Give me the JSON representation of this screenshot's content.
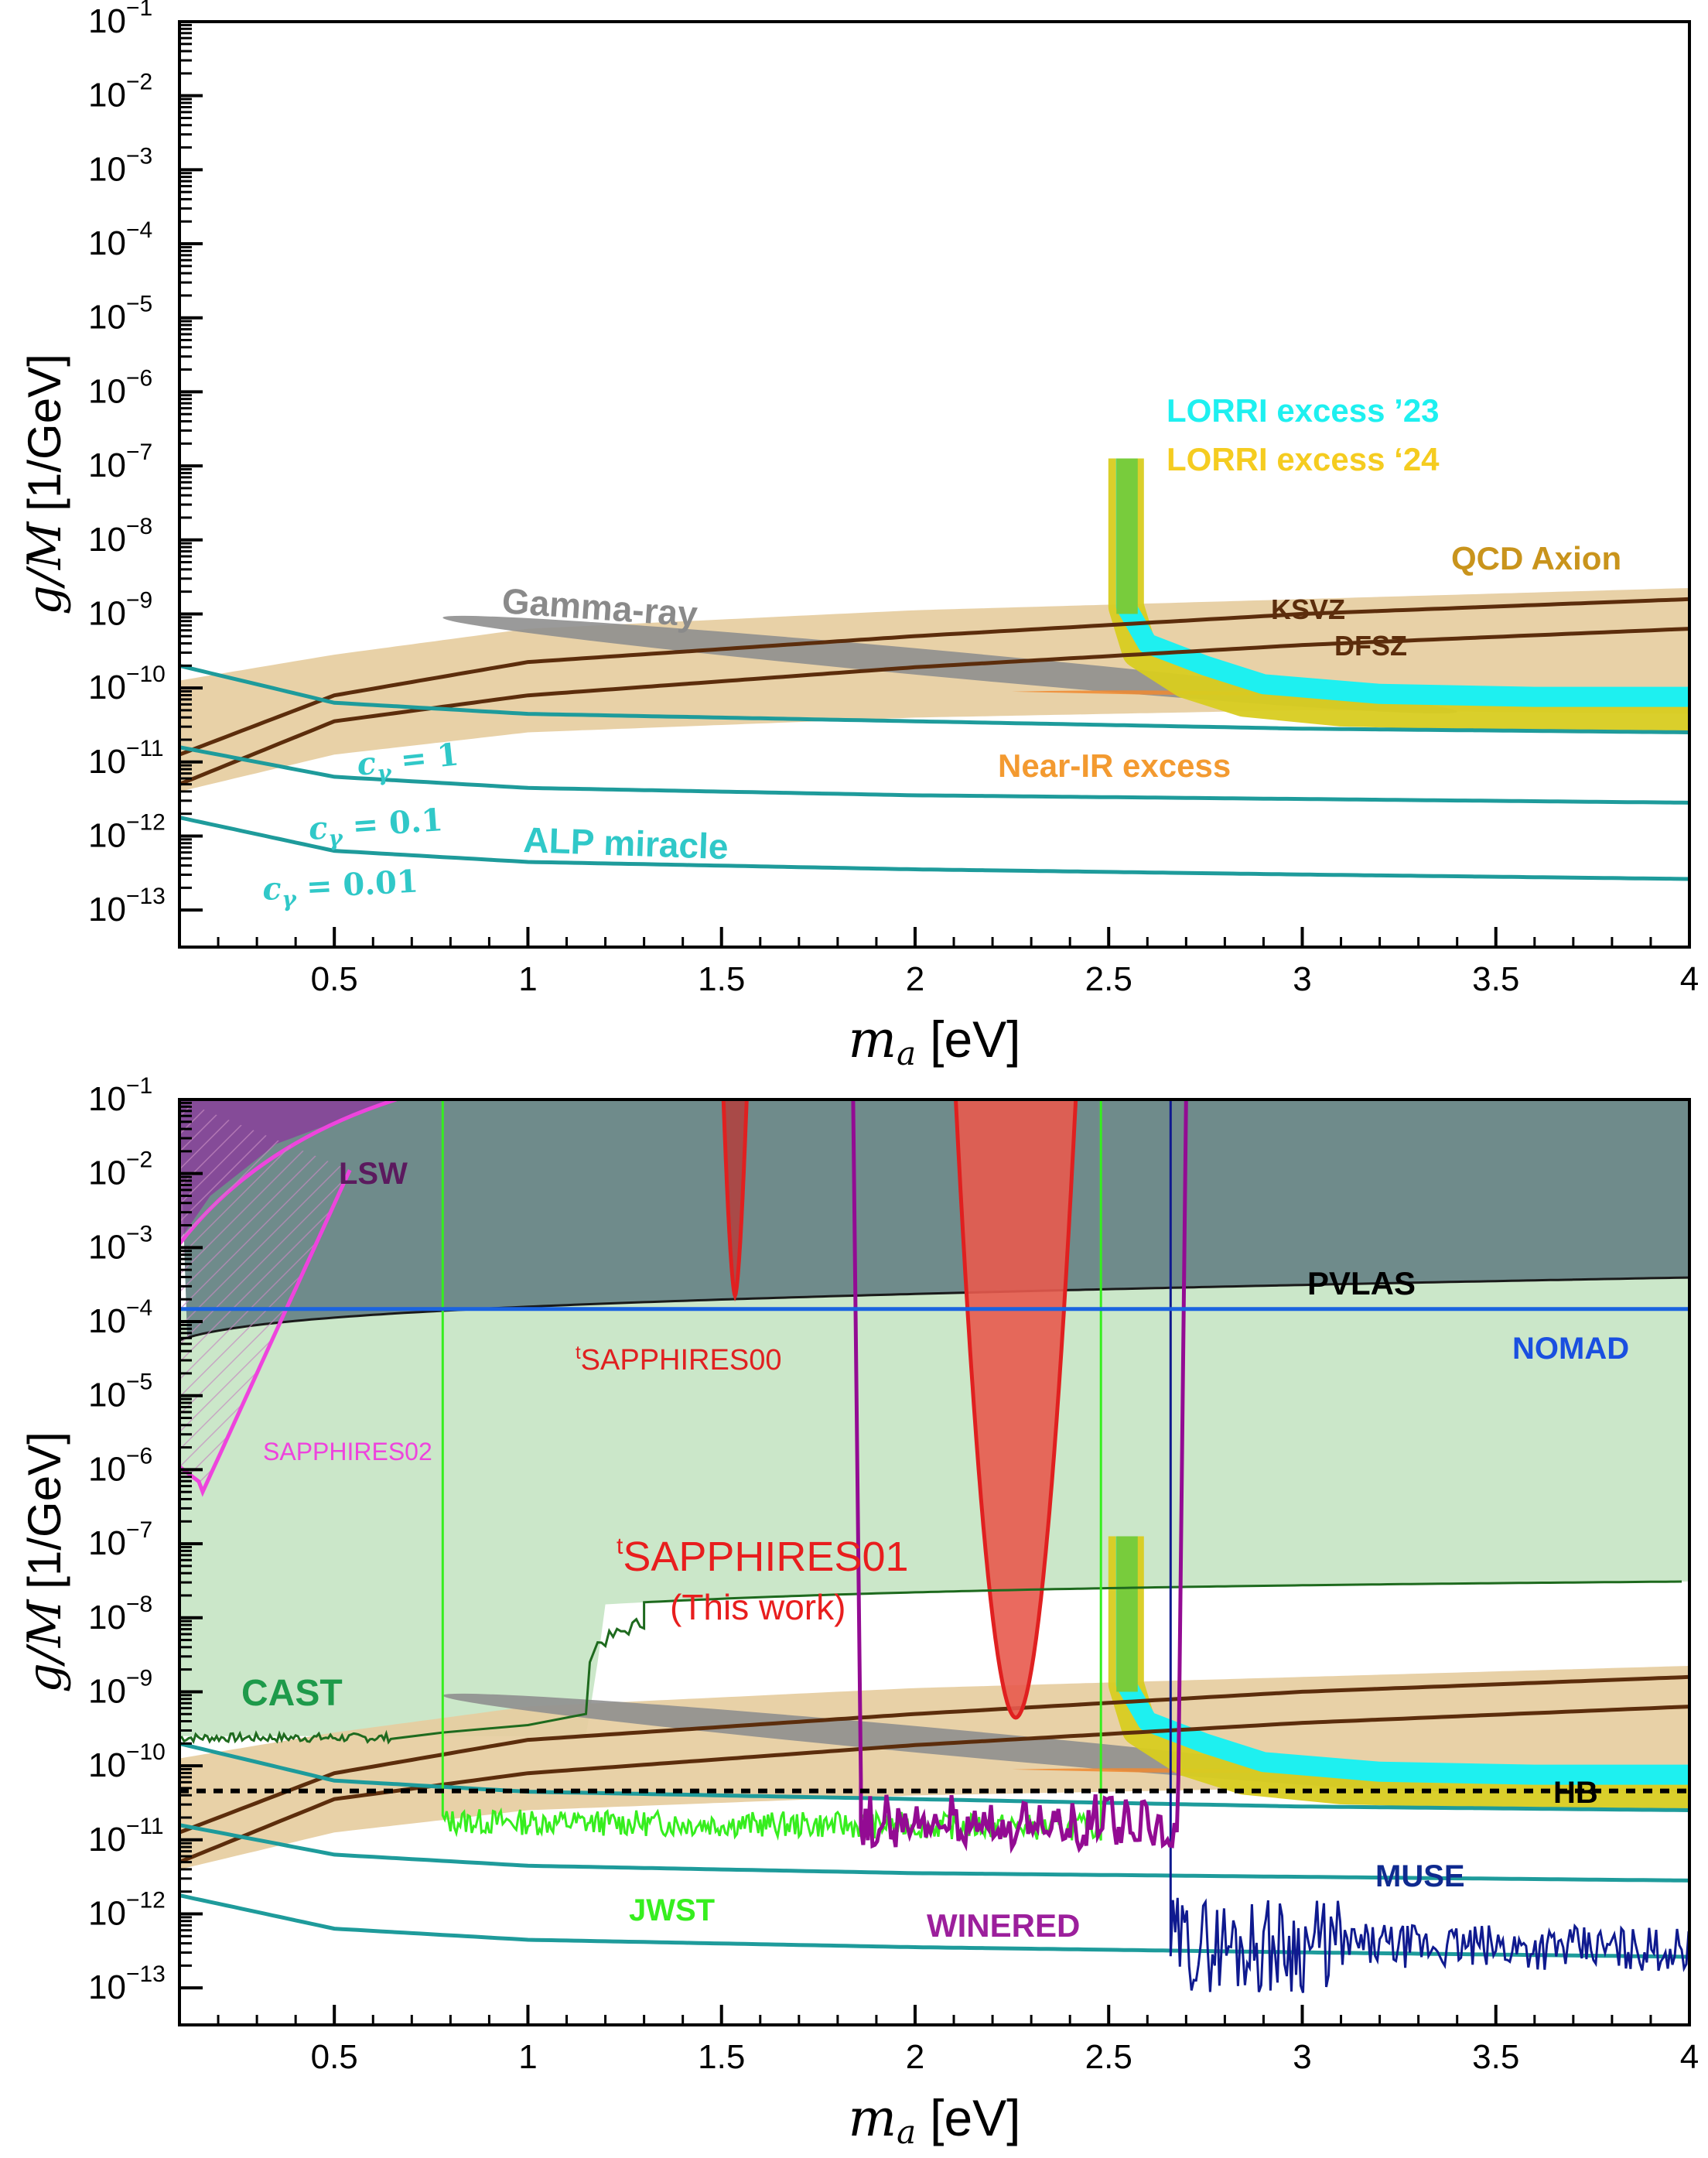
{
  "colors": {
    "qcd_band": "#e6cda0",
    "qcd_line": "#5c2d0c",
    "alp_line": "#1e9b9b",
    "alp_label": "#30c8c8",
    "gamma": "#8f8f8f",
    "lorri23": "#1ef0f0",
    "lorri24": "#d8cc20",
    "lorri_overlap": "#78cc3c",
    "nearir": "#f08a30",
    "excluded_dark": "#6f8b8b",
    "cast_fill": "#cbe7c9",
    "cast_line": "#1e6a1e",
    "lsw": "#8a3f9a",
    "sapphires02": "#ee44dd",
    "sapphires00": "#a94a48",
    "sapphires01": "#e85a4e",
    "sapphires_edge": "#e02020",
    "nomad": "#1a63e0",
    "hb": "#000000",
    "jwst": "#36ee1e",
    "winered": "#930b93",
    "muse": "#0f1a8f",
    "black": "#000000"
  },
  "chart_data": [
    {
      "type": "line",
      "panel": "top",
      "xlabel_symbol": "m",
      "xlabel_sub": "a",
      "xlabel_unit": "[eV]",
      "ylabel_symbol": "g/M",
      "ylabel_unit": "[1/GeV]",
      "xlim": [
        0.1,
        4.0
      ],
      "ylim_log10": [
        -13.5,
        -1
      ],
      "xticks": [
        0.5,
        1,
        1.5,
        2,
        2.5,
        3,
        3.5,
        4
      ],
      "xtick_labels": [
        "0.5",
        "1",
        "1.5",
        "2",
        "2.5",
        "3",
        "3.5",
        "4"
      ],
      "yticks_log10": [
        -13,
        -12,
        -11,
        -10,
        -9,
        -8,
        -7,
        -6,
        -5,
        -4,
        -3,
        -2,
        -1
      ],
      "ytick_exponents": [
        "−13",
        "−12",
        "−11",
        "−10",
        "−9",
        "−8",
        "−7",
        "−6",
        "−5",
        "−4",
        "−3",
        "−2",
        "−1"
      ],
      "ytick_base": "10",
      "labels": {
        "lorri23": "LORRI excess ’23",
        "lorri24": "LORRI excess ‘24",
        "qcd": "QCD Axion",
        "ksvz": "KSVZ",
        "dfsz": "DFSZ",
        "gamma": "Gamma-ray",
        "nearir": "Near-IR excess",
        "alp": "ALP miracle",
        "c1": "c",
        "c1_sub": "γ",
        "c1_val": " = 1",
        "c01": "c",
        "c01_sub": "γ",
        "c01_val": " = 0.1",
        "c001": "c",
        "c001_sub": "γ",
        "c001_val": " = 0.01"
      }
    },
    {
      "type": "line",
      "panel": "bottom",
      "xlabel_symbol": "m",
      "xlabel_sub": "a",
      "xlabel_unit": "[eV]",
      "ylabel_symbol": "g/M",
      "ylabel_unit": "[1/GeV]",
      "xlim": [
        0.1,
        4.0
      ],
      "ylim_log10": [
        -13.5,
        -1
      ],
      "xticks": [
        0.5,
        1,
        1.5,
        2,
        2.5,
        3,
        3.5,
        4
      ],
      "xtick_labels": [
        "0.5",
        "1",
        "1.5",
        "2",
        "2.5",
        "3",
        "3.5",
        "4"
      ],
      "yticks_log10": [
        -13,
        -12,
        -11,
        -10,
        -9,
        -8,
        -7,
        -6,
        -5,
        -4,
        -3,
        -2,
        -1
      ],
      "ytick_exponents": [
        "−13",
        "−12",
        "−11",
        "−10",
        "−9",
        "−8",
        "−7",
        "−6",
        "−5",
        "−4",
        "−3",
        "−2",
        "−1"
      ],
      "ytick_base": "10",
      "labels": {
        "lsw": "LSW",
        "pvlas": "PVLAS",
        "nomad": "NOMAD",
        "s00_sup": "t",
        "s00": "SAPPHIRES00",
        "s02": "SAPPHIRES02",
        "s01_sup": "t",
        "s01": "SAPPHIRES01",
        "this_work": "(This work)",
        "cast": "CAST",
        "hb": "HB",
        "muse": "MUSE",
        "jwst": "JWST",
        "winered": "WINERED"
      },
      "limits": {
        "nomad_log10g": -3.83,
        "hb_log10g": -10.34,
        "s00": {
          "center_ma": 1.535,
          "width_ma": 0.06,
          "min_log10g": -3.65
        },
        "s01": {
          "center_ma": 2.26,
          "width_ma": 0.31,
          "min_log10g": -9.35
        },
        "jwst": {
          "ma_range": [
            0.78,
            2.48
          ],
          "log10g_level": -10.75
        },
        "winered": {
          "ma_range": [
            1.84,
            2.7
          ],
          "log10g_level": -10.95
        },
        "muse": {
          "ma_range": [
            2.66,
            4.0
          ],
          "log10g_level": -12.4
        },
        "cast": {
          "log10g_low": -9.62,
          "log10g_high": -7.62
        }
      }
    }
  ],
  "shared_models": {
    "qcd_band_log10g": {
      "ma": [
        0.1,
        0.5,
        1,
        2,
        3,
        4
      ],
      "low": [
        -11.4,
        -10.9,
        -10.6,
        -10.4,
        -10.3,
        -10.35
      ],
      "high": [
        -9.9,
        -9.55,
        -9.2,
        -8.95,
        -8.8,
        -8.65
      ]
    },
    "ksvz_log10g": {
      "ma": [
        0.1,
        0.5,
        1,
        2,
        3,
        4
      ],
      "v": [
        -10.9,
        -10.1,
        -9.65,
        -9.3,
        -9.0,
        -8.8
      ]
    },
    "dfsz_log10g": {
      "ma": [
        0.1,
        0.5,
        1,
        2,
        3,
        4
      ],
      "v": [
        -11.3,
        -10.45,
        -10.1,
        -9.72,
        -9.42,
        -9.2
      ]
    },
    "alp_c1_log10g": {
      "ma": [
        0.1,
        0.5,
        1,
        2,
        3,
        4
      ],
      "v": [
        -9.7,
        -10.2,
        -10.35,
        -10.45,
        -10.55,
        -10.6
      ]
    },
    "alp_c01_log10g": {
      "ma": [
        0.1,
        0.5,
        1,
        2,
        3,
        4
      ],
      "v": [
        -10.8,
        -11.2,
        -11.35,
        -11.45,
        -11.5,
        -11.55
      ]
    },
    "alp_c001_log10g": {
      "ma": [
        0.1,
        0.5,
        1,
        2,
        3,
        4
      ],
      "v": [
        -11.75,
        -12.2,
        -12.35,
        -12.45,
        -12.52,
        -12.58
      ]
    },
    "lorri23_center": {
      "ma": [
        2.545,
        2.545,
        2.6,
        2.75,
        2.9,
        3.2,
        3.6,
        4.0
      ],
      "log10g": [
        -6.9,
        -8.9,
        -9.4,
        -9.7,
        -9.95,
        -10.08,
        -10.12,
        -10.12
      ]
    },
    "lorri24_center": {
      "ma": [
        2.545,
        2.545,
        2.58,
        2.7,
        2.85,
        3.1,
        3.5,
        4.0
      ],
      "log10g": [
        -6.9,
        -8.9,
        -9.5,
        -9.9,
        -10.15,
        -10.28,
        -10.33,
        -10.35
      ]
    },
    "gamma_ellipse": {
      "ma": [
        0.78,
        3.4
      ],
      "log10g": [
        -9.05,
        -10.32
      ]
    }
  }
}
